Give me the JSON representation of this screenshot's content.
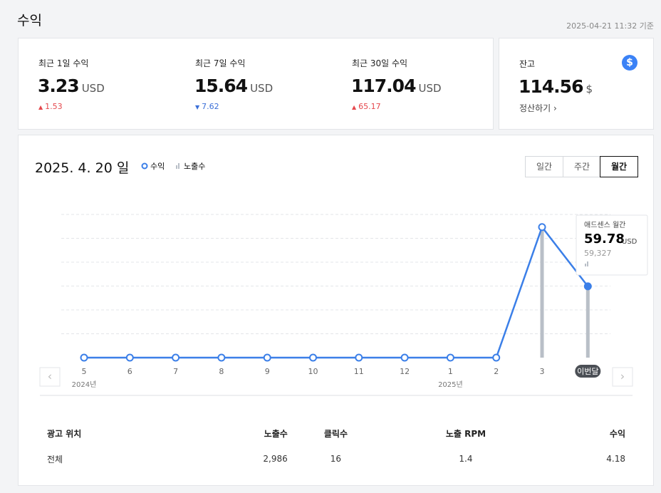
{
  "header": {
    "title": "수익",
    "timestamp": "2025-04-21 11:32 기준"
  },
  "summary": [
    {
      "label": "최근 1일 수익",
      "value": "3.23",
      "unit": "USD",
      "change": "1.53",
      "direction": "up"
    },
    {
      "label": "최근 7일 수익",
      "value": "15.64",
      "unit": "USD",
      "change": "7.62",
      "direction": "down"
    },
    {
      "label": "최근 30일 수익",
      "value": "117.04",
      "unit": "USD",
      "change": "65.17",
      "direction": "up"
    }
  ],
  "balance": {
    "label": "잔고",
    "value": "114.56",
    "unit": "$",
    "link": "정산하기"
  },
  "period": {
    "date": "2025. 4. 20 일",
    "tabs": [
      "일간",
      "주간",
      "월간"
    ],
    "selected": 2
  },
  "chart_data": {
    "type": "line",
    "categories": [
      "5",
      "6",
      "7",
      "8",
      "9",
      "10",
      "11",
      "12",
      "1",
      "2",
      "3",
      "이번달"
    ],
    "year_labels": [
      "2024년",
      null,
      null,
      null,
      null,
      null,
      null,
      null,
      "2025년",
      null,
      null,
      null
    ],
    "series": [
      {
        "name": "수익",
        "color": "#3b7fe8",
        "values": [
          0,
          0,
          0,
          0,
          0,
          0,
          0,
          0,
          0,
          0,
          109.4,
          59.78
        ]
      },
      {
        "name": "노출수",
        "color": "#b9bfc7",
        "axis": "y2",
        "values": [
          0,
          0,
          0,
          0,
          0,
          0,
          0,
          0,
          0,
          0,
          108600,
          59327
        ],
        "value_labels": [
          null,
          null,
          null,
          null,
          null,
          null,
          null,
          null,
          null,
          null,
          null,
          "59,327"
        ]
      }
    ],
    "ylim": [
      0,
      120
    ],
    "yticks": [
      20,
      40,
      60,
      80,
      100,
      120
    ],
    "y2lim": [
      0,
      120000
    ],
    "grid": true,
    "tooltip": {
      "title": "애드센스 월간",
      "unit": "USD",
      "index": 11
    }
  },
  "table": {
    "headers": [
      "광고 위치",
      "노출수",
      "클릭수",
      "노출 RPM",
      "수익"
    ],
    "rows": [
      [
        "전체",
        "2,986",
        "16",
        "1.4",
        "4.18"
      ]
    ]
  }
}
